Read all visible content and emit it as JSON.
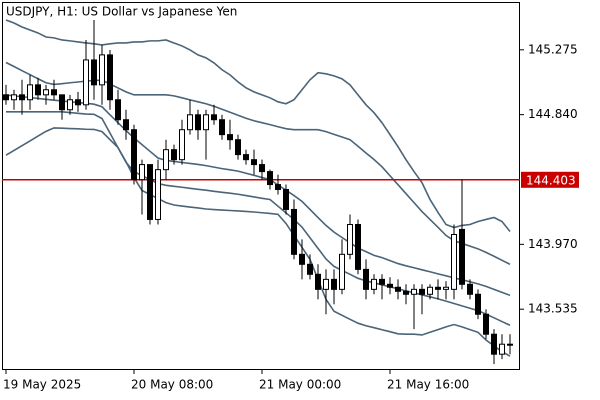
{
  "chart_data": {
    "type": "candlestick",
    "title": "USDJPY, H1:  US Dollar vs Japanese Yen",
    "categories": [
      "19 May 2025",
      null,
      null,
      null,
      null,
      null,
      null,
      null,
      null,
      null,
      null,
      null,
      null,
      null,
      null,
      null,
      "20 May 08:00",
      null,
      null,
      null,
      null,
      null,
      null,
      null,
      null,
      null,
      null,
      null,
      null,
      null,
      null,
      null,
      "21 May 00:00",
      null,
      null,
      null,
      null,
      null,
      null,
      null,
      null,
      null,
      null,
      null,
      null,
      null,
      null,
      null,
      "21 May 16:00",
      null,
      null,
      null,
      null,
      null,
      null,
      null,
      null,
      null,
      null,
      null,
      null,
      null,
      null,
      null
    ],
    "open": [
      144.973,
      144.94,
      144.973,
      144.94,
      145.04,
      144.973,
      145.007,
      144.973,
      144.873,
      144.94,
      144.906,
      145.207,
      145.04,
      145.241,
      144.94,
      144.806,
      144.739,
      144.404,
      144.505,
      144.137,
      144.471,
      144.605,
      144.538,
      144.739,
      144.839,
      144.739,
      144.839,
      144.806,
      144.706,
      144.672,
      144.572,
      144.538,
      144.505,
      144.458,
      144.371,
      144.338,
      144.204,
      143.903,
      143.836,
      143.769,
      143.668,
      143.735,
      143.668,
      143.903,
      144.103,
      143.802,
      143.668,
      143.735,
      143.702,
      143.682,
      143.655,
      143.635,
      143.668,
      143.635,
      143.682,
      143.668,
      143.668,
      144.07,
      143.702,
      143.635,
      143.501,
      143.367,
      143.233,
      143.3
    ],
    "high": [
      145.04,
      145.007,
      145.074,
      145.107,
      145.087,
      145.04,
      145.074,
      144.973,
      144.973,
      144.993,
      145.341,
      145.475,
      145.308,
      145.274,
      145.007,
      144.873,
      144.772,
      144.538,
      144.505,
      144.538,
      144.672,
      144.639,
      144.806,
      144.94,
      144.873,
      144.873,
      144.906,
      144.839,
      144.806,
      144.706,
      144.605,
      144.605,
      144.538,
      144.471,
      144.438,
      144.371,
      144.271,
      144.003,
      143.903,
      143.836,
      143.802,
      143.802,
      144.003,
      144.17,
      144.137,
      143.869,
      143.769,
      143.769,
      143.749,
      143.735,
      143.702,
      143.702,
      143.702,
      143.702,
      143.735,
      143.722,
      144.103,
      144.404,
      143.735,
      143.668,
      143.534,
      143.401,
      143.367,
      143.367
    ],
    "low": [
      144.906,
      144.873,
      144.839,
      144.873,
      144.94,
      144.906,
      144.94,
      144.806,
      144.839,
      144.859,
      144.873,
      144.94,
      144.906,
      144.873,
      144.772,
      144.672,
      144.371,
      144.17,
      144.103,
      144.103,
      144.404,
      144.505,
      144.505,
      144.706,
      144.672,
      144.538,
      144.772,
      144.672,
      144.605,
      144.538,
      144.505,
      144.438,
      144.404,
      144.338,
      144.304,
      144.17,
      143.869,
      143.735,
      143.735,
      143.601,
      143.501,
      143.568,
      143.635,
      143.869,
      143.769,
      143.601,
      143.635,
      143.601,
      143.635,
      143.601,
      143.568,
      143.401,
      143.501,
      143.601,
      143.601,
      143.601,
      143.601,
      143.668,
      143.601,
      143.468,
      143.334,
      143.166,
      143.2,
      143.233
    ],
    "close": [
      144.94,
      144.973,
      144.94,
      145.04,
      144.973,
      145.007,
      144.973,
      144.873,
      144.94,
      144.906,
      145.207,
      145.04,
      145.241,
      144.94,
      144.806,
      144.739,
      144.404,
      144.505,
      144.137,
      144.471,
      144.605,
      144.538,
      144.739,
      144.839,
      144.739,
      144.839,
      144.806,
      144.706,
      144.672,
      144.572,
      144.538,
      144.505,
      144.458,
      144.371,
      144.338,
      144.204,
      143.903,
      143.836,
      143.769,
      143.668,
      143.735,
      143.668,
      143.903,
      144.103,
      143.802,
      143.668,
      143.735,
      143.702,
      143.682,
      143.655,
      143.635,
      143.668,
      143.635,
      143.682,
      143.668,
      143.682,
      144.036,
      143.702,
      143.635,
      143.501,
      143.367,
      143.233,
      143.3,
      143.3
    ],
    "up_color": "#ffffff",
    "down_color": "#000000",
    "overlays": [
      {
        "color": "#4b6478",
        "values": [
          145.475,
          145.455,
          145.428,
          145.408,
          145.388,
          145.361,
          145.355,
          145.341,
          145.335,
          145.328,
          145.321,
          145.315,
          145.308,
          145.315,
          145.321,
          145.321,
          145.328,
          145.328,
          145.335,
          145.335,
          145.341,
          145.321,
          145.301,
          145.274,
          145.241,
          145.221,
          145.187,
          145.141,
          145.107,
          145.06,
          145.02,
          144.993,
          144.973,
          144.953,
          144.926,
          144.913,
          144.94,
          145.007,
          145.074,
          145.121,
          145.114,
          145.1,
          145.08,
          145.04,
          144.973,
          144.906,
          144.853,
          144.786,
          144.706,
          144.625,
          144.538,
          144.458,
          144.384,
          144.271,
          144.184,
          144.103,
          144.083,
          144.097,
          144.103,
          144.123,
          144.137,
          144.15,
          144.123,
          144.056
        ]
      },
      {
        "color": "#4b6478",
        "values": [
          145.19,
          145.163,
          145.135,
          145.108,
          145.081,
          145.054,
          145.043,
          145.048,
          145.054,
          145.059,
          145.065,
          145.07,
          145.071,
          145.045,
          145.019,
          144.993,
          144.973,
          144.973,
          144.973,
          144.973,
          144.973,
          144.966,
          144.953,
          144.939,
          144.926,
          144.913,
          144.896,
          144.876,
          144.856,
          144.836,
          144.816,
          144.799,
          144.786,
          144.773,
          144.759,
          144.746,
          144.739,
          144.739,
          144.739,
          144.739,
          144.726,
          144.708,
          144.69,
          144.672,
          144.628,
          144.583,
          144.539,
          144.49,
          144.43,
          144.37,
          144.31,
          144.25,
          144.19,
          144.137,
          144.084,
          144.03,
          143.994,
          143.976,
          143.958,
          143.94,
          143.916,
          143.89,
          143.863,
          143.836
        ]
      },
      {
        "color": "#4b6478",
        "values": [
          144.972,
          144.966,
          144.96,
          144.955,
          144.949,
          144.943,
          144.937,
          144.932,
          144.926,
          144.921,
          144.916,
          144.91,
          144.893,
          144.839,
          144.786,
          144.733,
          144.684,
          144.639,
          144.594,
          144.549,
          144.533,
          144.526,
          144.519,
          144.513,
          144.506,
          144.498,
          144.488,
          144.478,
          144.47,
          144.461,
          144.447,
          144.433,
          144.418,
          144.404,
          144.368,
          144.333,
          144.297,
          144.258,
          144.204,
          144.15,
          144.097,
          144.052,
          144.016,
          143.98,
          143.945,
          143.921,
          143.896,
          143.881,
          143.861,
          143.841,
          143.826,
          143.813,
          143.799,
          143.786,
          143.772,
          143.759,
          143.745,
          143.732,
          143.719,
          143.705,
          143.688,
          143.668,
          143.648,
          143.628
        ]
      },
      {
        "color": "#4b6478",
        "values": [
          144.859,
          144.859,
          144.859,
          144.859,
          144.859,
          144.859,
          144.859,
          144.859,
          144.854,
          144.849,
          144.844,
          144.842,
          144.814,
          144.716,
          144.618,
          144.52,
          144.458,
          144.431,
          144.404,
          144.378,
          144.366,
          144.359,
          144.353,
          144.346,
          144.339,
          144.333,
          144.326,
          144.319,
          144.313,
          144.306,
          144.297,
          144.288,
          144.279,
          144.271,
          144.226,
          144.181,
          144.137,
          144.085,
          144.014,
          143.943,
          143.872,
          143.822,
          143.795,
          143.769,
          143.742,
          143.725,
          143.712,
          143.698,
          143.685,
          143.671,
          143.658,
          143.644,
          143.631,
          143.618,
          143.604,
          143.589,
          143.573,
          143.557,
          143.541,
          143.525,
          143.502,
          143.477,
          143.452,
          143.427
        ]
      },
      {
        "color": "#4b6478",
        "values": [
          144.568,
          144.6,
          144.632,
          144.664,
          144.696,
          144.728,
          144.751,
          144.749,
          144.747,
          144.745,
          144.742,
          144.741,
          144.726,
          144.672,
          144.619,
          144.525,
          144.418,
          144.331,
          144.304,
          144.277,
          144.25,
          144.234,
          144.227,
          144.22,
          144.214,
          144.207,
          144.203,
          144.2,
          144.197,
          144.194,
          144.191,
          144.187,
          144.182,
          144.177,
          144.171,
          144.11,
          144.03,
          143.95,
          143.869,
          143.735,
          143.601,
          143.521,
          143.494,
          143.467,
          143.441,
          143.424,
          143.411,
          143.397,
          143.384,
          143.37,
          143.367,
          143.367,
          143.362,
          143.38,
          143.398,
          143.416,
          143.432,
          143.416,
          143.398,
          143.38,
          143.328,
          143.289,
          143.25,
          143.22
        ]
      }
    ],
    "price_line": {
      "value": 144.403,
      "color": "#c80000"
    },
    "ylim": [
      143.127,
      145.589
    ],
    "yticks": [
      145.275,
      {
        "value": 144.84,
        "label": "144.840"
      },
      {
        "value": 143.97,
        "label": "143.970"
      },
      143.535
    ]
  }
}
